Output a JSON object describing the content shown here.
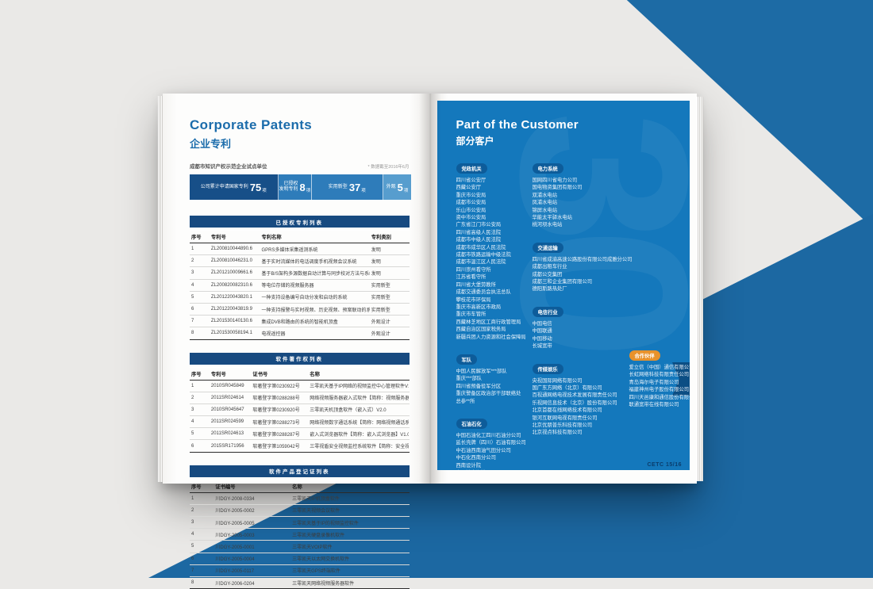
{
  "backdrop": {
    "blue": "#1d6ba5",
    "gray": "#eae9e7"
  },
  "left_page": {
    "title_en": "Corporate Patents",
    "title_cn": "企业专利",
    "note_left": "成都市知识产权示范企业试点单位",
    "note_right": "* 数据截至2016年6月",
    "stats": [
      {
        "prefix": "公司累计申请国家专利",
        "value": "75",
        "suffix": "项",
        "color": "#174f88",
        "width": 40
      },
      {
        "prefix": "已授权\n发明专利",
        "value": "8",
        "suffix": "项",
        "color": "#2e7cba",
        "width": 15
      },
      {
        "prefix": "实用新型",
        "value": "37",
        "suffix": "项",
        "color": "#2e7cba",
        "width": 32
      },
      {
        "prefix": "外观",
        "value": "5",
        "suffix": "项",
        "color": "#579dce",
        "width": 13
      }
    ],
    "tables": [
      {
        "title": "已授权专利列表",
        "headers": [
          "序号",
          "专利号",
          "专利名称",
          "专利类别"
        ],
        "widths": [
          9,
          23,
          50,
          18
        ],
        "rows": [
          [
            "1",
            "ZL200810044890.6",
            "GPRS多媒体采集遥测系统",
            "发明"
          ],
          [
            "2",
            "ZL200810046231.0",
            "基于实时流媒体的电话调度手机视频会议系统",
            "发明"
          ],
          [
            "3",
            "ZL201210009661.6",
            "基于B/S架构多源数据自动计算与同步校对方法与系统",
            "发明"
          ],
          [
            "4",
            "ZL200820082310.6",
            "等电位存储的视频服务器",
            "实用新型"
          ],
          [
            "5",
            "ZL201220043820.1",
            "一种支持设备编号自动分发和启动的系统",
            "实用新型"
          ],
          [
            "6",
            "ZL201220043819.9",
            "一种支持报警与实时视频、历史视频、预案联动的系统",
            "实用新型"
          ],
          [
            "7",
            "ZL201530140130.6",
            "集成DVB和路由的系统的智能机顶盒",
            "外观设计"
          ],
          [
            "8",
            "ZL201530058194.1",
            "电视遥控器",
            "外观设计"
          ]
        ]
      },
      {
        "title": "软件著作权列表",
        "headers": [
          "序号",
          "专利号",
          "证书号",
          "名称"
        ],
        "widths": [
          9,
          19,
          26,
          46
        ],
        "rows": [
          [
            "1",
            "2010SR045849",
            "软著登字第0230922号",
            "三零凯天基于IP网络的视频监控中心管理软件V1.4"
          ],
          [
            "2",
            "2011SR024614",
            "软著登字第0288288号",
            "网络视频服务器嵌入式软件【简称：视频服务器软件】V1.0"
          ],
          [
            "3",
            "2010SR045647",
            "软著登字第0230920号",
            "三零凯天机顶盒软件（嵌入式）V2.0"
          ],
          [
            "4",
            "2011SR024599",
            "软著登字第0288273号",
            "网络视频数字通话系统【简称：网络视频通话系统】V1.0"
          ],
          [
            "5",
            "2011SR024613",
            "软著登字第0288287号",
            "嵌入式浏览器软件【简称：嵌入式浏览器】V1.0"
          ],
          [
            "6",
            "2015SR171956",
            "软著登字第1059042号",
            "三零视盾安全视频监控系统软件【简称：安全视频监控软件】V2.0"
          ]
        ]
      },
      {
        "title": "软件产品登记证列表",
        "headers": [
          "序号",
          "证书编号",
          "名称"
        ],
        "widths": [
          11,
          35,
          54
        ],
        "rows": [
          [
            "1",
            "川DGY-2008-0334",
            "三零凯天IP机顶盒软件"
          ],
          [
            "2",
            "川DGY-2005-0002",
            "三零凯天视频会议软件"
          ],
          [
            "3",
            "川DGY-2005-0005",
            "三零凯天基于IP的视频监控软件"
          ],
          [
            "4",
            "川DGY-2005-0003",
            "三零凯天硬盘录像机软件"
          ],
          [
            "5",
            "川DGY-2005-0001",
            "三零凯天VOIP软件"
          ],
          [
            "6",
            "川DGY-2005-0004",
            "三零凯天以太网交换机软件"
          ],
          [
            "7",
            "川DGY-2005-0117",
            "三零凯天GPS终端软件"
          ],
          [
            "8",
            "川DGY-2006-0204",
            "三零凯天网络视频服务器软件"
          ]
        ]
      }
    ]
  },
  "right_page": {
    "title_en": "Part of the Customer",
    "title_cn": "部分客户",
    "watermark": "30",
    "footer": "CETC 15/16",
    "tag_color_default": "#0d5c9a",
    "columns": [
      {
        "sections": [
          {
            "tag": "党政机关",
            "items": [
              "四川省公安厅",
              "西藏公安厅",
              "重庆市公安局",
              "成都市公安局",
              "乐山市公安局",
              "资中市公安局",
              "广东省江门市公安局",
              "四川省高级人民法院",
              "成都市中级人民法院",
              "成都市成华区人民法院",
              "成都市铁路运输中级法院",
              "成都市温江区人民法院",
              "四川崇州看守所",
              "江苏省看守所",
              "四川省大堡劳教所",
              "成都交通委员会执法总队",
              "攀枝花市环保局",
              "重庆市高新区市政局",
              "重庆市车管所",
              "西藏林芝地区工商行政管理局",
              "西藏自治区国家税务局",
              "新疆兵团人力资源和社会保障局"
            ]
          },
          {
            "tag": "军队",
            "items": [
              "中国人民解放军***部队",
              "重庆***部队",
              "四川省预备役军分区",
              "重庆警备区政治部干部联络处",
              "总参**所"
            ]
          },
          {
            "tag": "石油石化",
            "items": [
              "中国石油化工四川石油分公司",
              "延长壳牌（四川）石油有限公司",
              "中石油西南油气田分公司",
              "中石化西南分公司",
              "西南设计院",
              "中石油青海油田",
              "中石油新疆塔中凝析七气田",
              "中石油吉林油田分公司",
              "西南油气田分公司重庆气矿"
            ]
          }
        ]
      },
      {
        "sections": [
          {
            "tag": "电力系统",
            "items": [
              "国网四川省电力公司",
              "国电物资集团有限公司",
              "双浦水电站",
              "凤浦水电站",
              "锦屏水电站",
              "华能太平驿水电站",
              "桃河坝水电站"
            ]
          },
          {
            "tag": "交通运输",
            "items": [
              "四川省成渝高速公路股份有限公司成雅分公司",
              "成都出租车行业",
              "成都公交集团",
              "成都三和企业集团有限公司",
              "德阳斯路热处厂"
            ]
          },
          {
            "tag": "电信行业",
            "items": [
              "中国电信",
              "中国联通",
              "中国移动",
              "长城宽带"
            ]
          },
          {
            "tag": "传媒娱乐",
            "items": [
              "央视国际网络有限公司",
              "国广东方网络（北京）有限公司",
              "百视通网络电视技术发展有限责任公司",
              "乐视网信息技术（北京）股份有限公司",
              "北京首都在线网络技术有限公司",
              "银河互联网电视有限责任公司",
              "北京优朋普乐科技有限公司",
              "北京视点科技有限公司"
            ]
          }
        ]
      },
      {
        "sections": [
          {
            "tag": "合作伙伴",
            "tag_color": "#e8922b",
            "items": [
              "爱立信（中国）通信有限公司",
              "长虹网络科技有限责任公司",
              "青岛海尔电子有限公司",
              "福建神州电子股份有限公司",
              "四川天邑康和通信股份有限公司",
              "联通宽带在线有限公司"
            ]
          }
        ]
      }
    ]
  }
}
